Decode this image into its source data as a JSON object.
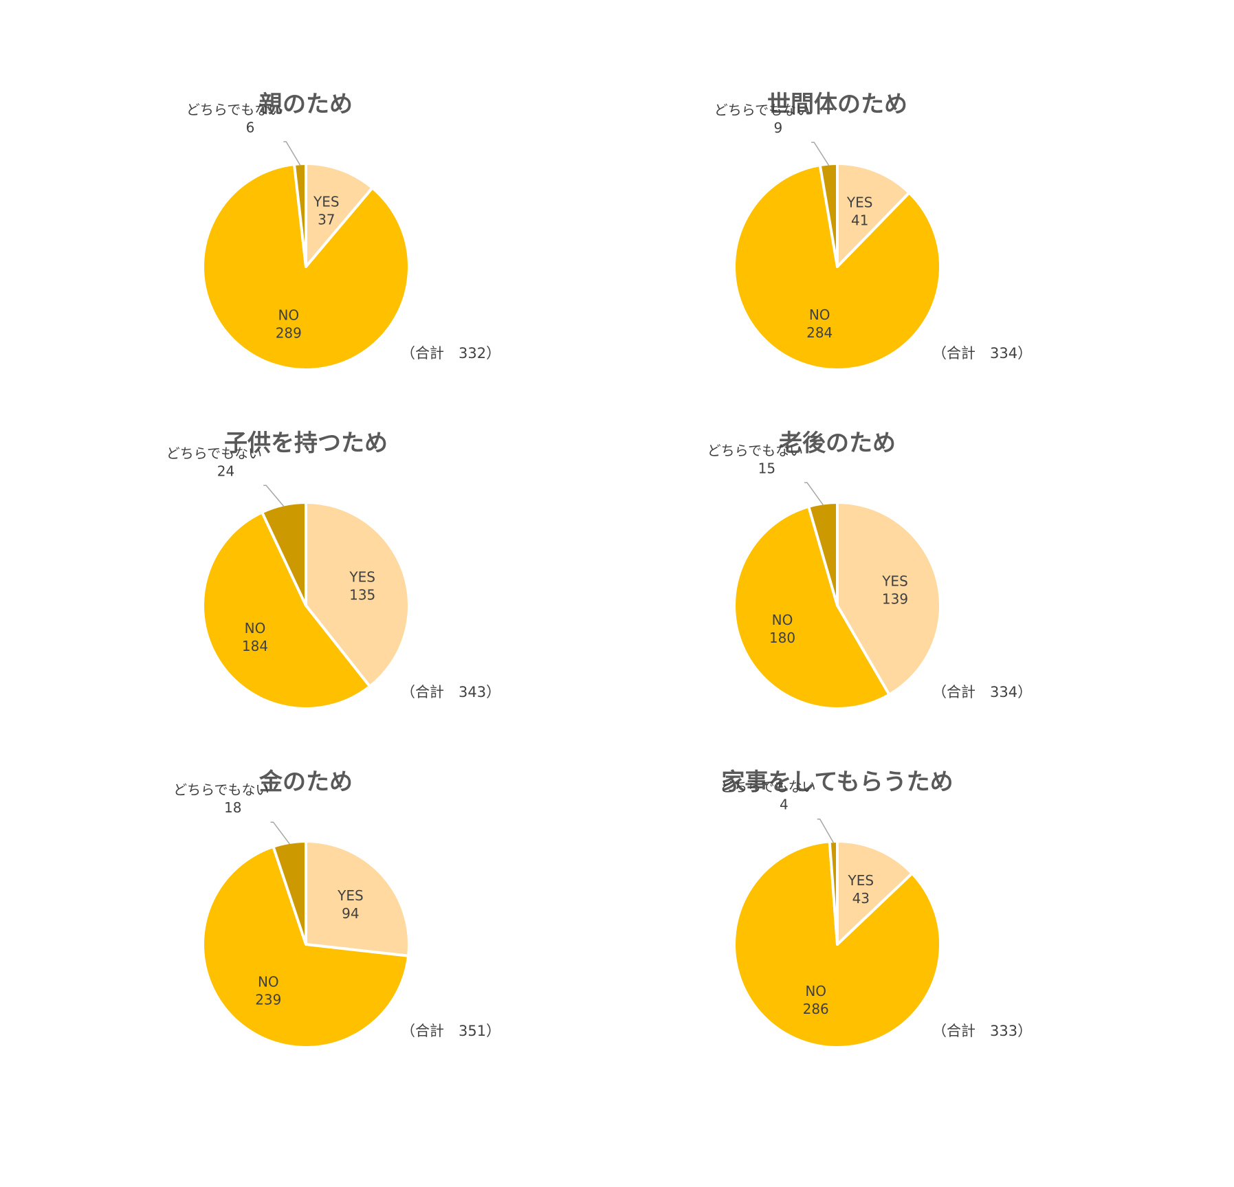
{
  "colors": {
    "yes": "#FFD9A0",
    "no": "#FFC000",
    "neither": "#CC9A00",
    "title": "#595959",
    "label": "#404040",
    "leader": "#A6A6A6",
    "slice_border": "#FFFFFF"
  },
  "chart_data": [
    {
      "type": "pie",
      "title": "親のため",
      "total_label": "（合計　332）",
      "slices": [
        {
          "label": "YES",
          "value": 37
        },
        {
          "label": "NO",
          "value": 289
        },
        {
          "label": "どちらでもない",
          "value": 6
        }
      ]
    },
    {
      "type": "pie",
      "title": "世間体のため",
      "total_label": "（合計　334）",
      "slices": [
        {
          "label": "YES",
          "value": 41
        },
        {
          "label": "NO",
          "value": 284
        },
        {
          "label": "どちらでもない",
          "value": 9
        }
      ]
    },
    {
      "type": "pie",
      "title": "子供を持つため",
      "total_label": "（合計　343）",
      "slices": [
        {
          "label": "YES",
          "value": 135
        },
        {
          "label": "NO",
          "value": 184
        },
        {
          "label": "どちらでもない",
          "value": 24
        }
      ]
    },
    {
      "type": "pie",
      "title": "老後のため",
      "total_label": "（合計　334）",
      "slices": [
        {
          "label": "YES",
          "value": 139
        },
        {
          "label": "NO",
          "value": 180
        },
        {
          "label": "どちらでもない",
          "value": 15
        }
      ]
    },
    {
      "type": "pie",
      "title": "金のため",
      "total_label": "（合計　351）",
      "slices": [
        {
          "label": "YES",
          "value": 94
        },
        {
          "label": "NO",
          "value": 239
        },
        {
          "label": "どちらでもない",
          "value": 18
        }
      ]
    },
    {
      "type": "pie",
      "title": "家事をしてもらうため",
      "total_label": "（合計　333）",
      "slices": [
        {
          "label": "YES",
          "value": 43
        },
        {
          "label": "NO",
          "value": 286
        },
        {
          "label": "どちらでもない",
          "value": 4
        }
      ]
    }
  ]
}
